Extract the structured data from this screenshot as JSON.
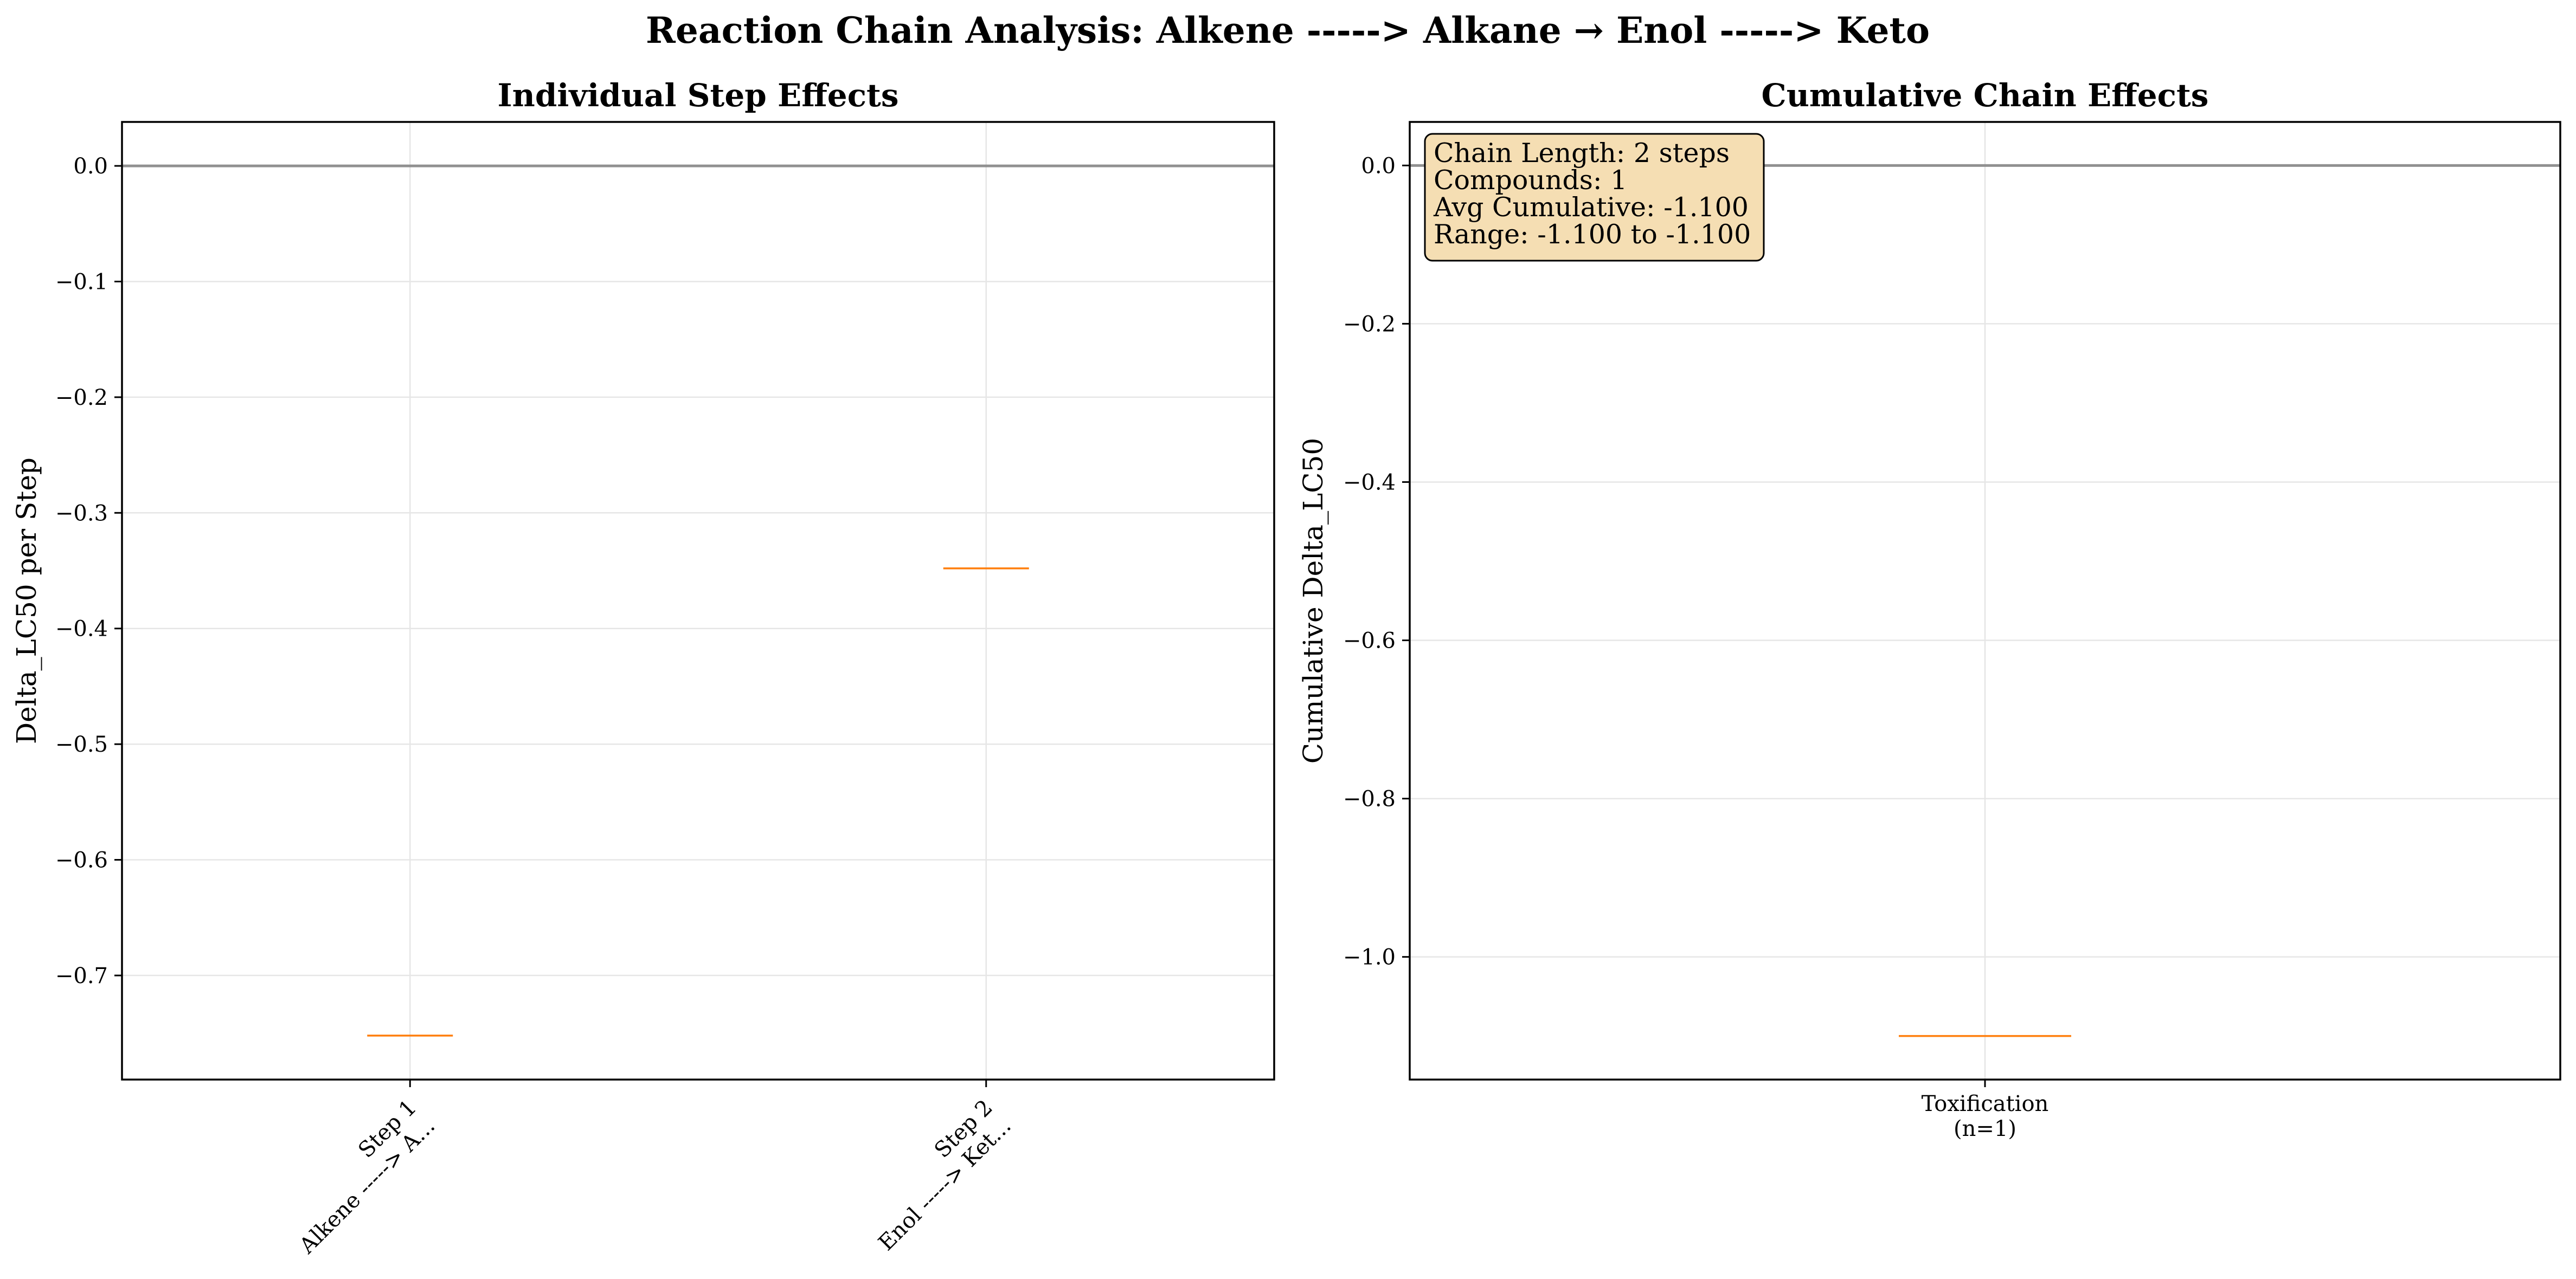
{
  "figure": {
    "suptitle": "Reaction Chain Analysis: Alkene -----> Alkane → Enol -----> Keto"
  },
  "chart_data": [
    {
      "type": "box",
      "title": "Individual Step Effects",
      "xlabel": "",
      "ylabel": "Delta_LC50 per Step",
      "ylim": [
        -0.79,
        0.038
      ],
      "yticks": [
        0.0,
        -0.1,
        -0.2,
        -0.3,
        -0.4,
        -0.5,
        -0.6,
        -0.7
      ],
      "ytick_labels": [
        "0.0",
        "−0.1",
        "−0.2",
        "−0.3",
        "−0.4",
        "−0.5",
        "−0.6",
        "−0.7"
      ],
      "categories": [
        {
          "label_line1": "Step 1",
          "label_line2": "Alkene -----> A...",
          "median": -0.752
        },
        {
          "label_line1": "Step 2",
          "label_line2": "Enol -----> Ket...",
          "median": -0.348
        }
      ],
      "reference_line": 0.0,
      "grid": true,
      "median_color": "#ff7f0e",
      "refline_color": "#808080"
    },
    {
      "type": "box",
      "title": "Cumulative Chain Effects",
      "xlabel": "",
      "ylabel": "Cumulative Delta_LC50",
      "ylim": [
        -1.155,
        0.055
      ],
      "yticks": [
        0.0,
        -0.2,
        -0.4,
        -0.6,
        -0.8,
        -1.0
      ],
      "ytick_labels": [
        "0.0",
        "−0.2",
        "−0.4",
        "−0.6",
        "−0.8",
        "−1.0"
      ],
      "categories": [
        {
          "label_line1": "Toxification",
          "label_line2": "(n=1)",
          "median": -1.1
        }
      ],
      "reference_line": 0.0,
      "grid": true,
      "median_color": "#ff7f0e",
      "refline_color": "#808080",
      "stats_box": {
        "lines": [
          "Chain Length: 2 steps",
          "Compounds: 1",
          "Avg Cumulative: -1.100",
          "Range: -1.100 to -1.100"
        ],
        "background": "#f5deb3"
      }
    }
  ]
}
